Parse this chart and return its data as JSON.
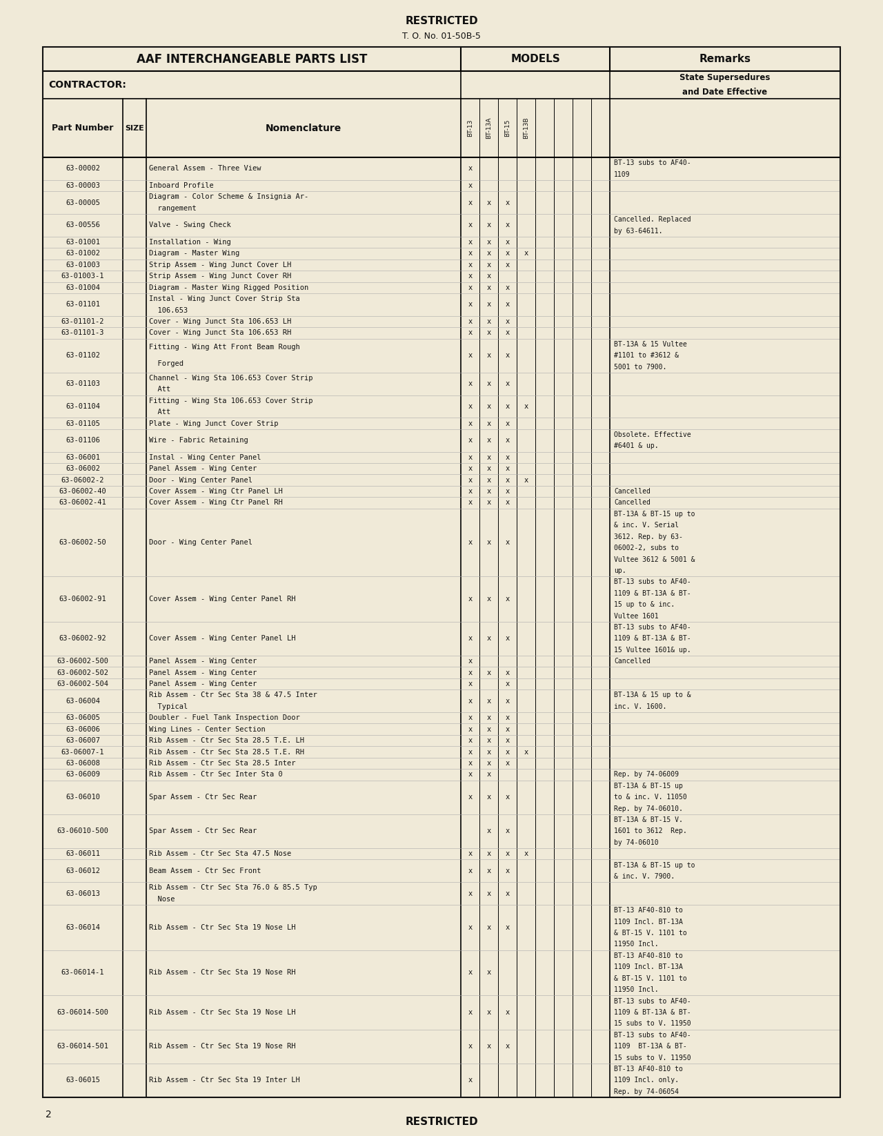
{
  "bg_color": "#f0ead8",
  "page_title_top": "RESTRICTED",
  "page_subtitle": "T. O. No. 01-50B-5",
  "header_left": "AAF INTERCHANGEABLE PARTS LIST",
  "header_models": "MODELS",
  "header_remarks": "Remarks",
  "contractor_label": "CONTRACTOR:",
  "state_supersedures": "State Supersedures\nand Date Effective",
  "model_labels_rotated": [
    "BT-13",
    "BT-13A",
    "BT-15",
    "BT-13B",
    "",
    "",
    "",
    ""
  ],
  "rows": [
    {
      "part": "63-00002",
      "nom": "General Assem - Three View",
      "marks": [
        1,
        0,
        0,
        0,
        0,
        0,
        0,
        0
      ],
      "remarks": "BT-13 subs to AF40-\n1109"
    },
    {
      "part": "63-00003",
      "nom": "Inboard Profile",
      "marks": [
        1,
        0,
        0,
        0,
        0,
        0,
        0,
        0
      ],
      "remarks": ""
    },
    {
      "part": "63-00005",
      "nom": "Diagram - Color Scheme & Insignia Ar-\n  rangement",
      "marks": [
        1,
        1,
        1,
        0,
        0,
        0,
        0,
        0
      ],
      "remarks": ""
    },
    {
      "part": "63-00556",
      "nom": "Valve - Swing Check",
      "marks": [
        1,
        1,
        1,
        0,
        0,
        0,
        0,
        0
      ],
      "remarks": "Cancelled. Replaced\nby 63-64611."
    },
    {
      "part": "63-01001",
      "nom": "Installation - Wing",
      "marks": [
        1,
        1,
        1,
        0,
        0,
        0,
        0,
        0
      ],
      "remarks": ""
    },
    {
      "part": "63-01002",
      "nom": "Diagram - Master Wing",
      "marks": [
        1,
        1,
        1,
        1,
        0,
        0,
        0,
        0
      ],
      "remarks": ""
    },
    {
      "part": "63-01003",
      "nom": "Strip Assem - Wing Junct Cover LH",
      "marks": [
        1,
        1,
        1,
        0,
        0,
        0,
        0,
        0
      ],
      "remarks": ""
    },
    {
      "part": "63-01003-1",
      "nom": "Strip Assem - Wing Junct Cover RH",
      "marks": [
        1,
        1,
        0,
        0,
        0,
        0,
        0,
        0
      ],
      "remarks": ""
    },
    {
      "part": "63-01004",
      "nom": "Diagram - Master Wing Rigged Position",
      "marks": [
        1,
        1,
        1,
        0,
        0,
        0,
        0,
        0
      ],
      "remarks": ""
    },
    {
      "part": "63-01101",
      "nom": "Instal - Wing Junct Cover Strip Sta\n  106.653",
      "marks": [
        1,
        1,
        1,
        0,
        0,
        0,
        0,
        0
      ],
      "remarks": ""
    },
    {
      "part": "63-01101-2",
      "nom": "Cover - Wing Junct Sta 106.653 LH",
      "marks": [
        1,
        1,
        1,
        0,
        0,
        0,
        0,
        0
      ],
      "remarks": ""
    },
    {
      "part": "63-01101-3",
      "nom": "Cover - Wing Junct Sta 106.653 RH",
      "marks": [
        1,
        1,
        1,
        0,
        0,
        0,
        0,
        0
      ],
      "remarks": ""
    },
    {
      "part": "63-01102",
      "nom": "Fitting - Wing Att Front Beam Rough\n  Forged",
      "marks": [
        1,
        1,
        1,
        0,
        0,
        0,
        0,
        0
      ],
      "remarks": "BT-13A & 15 Vultee\n#1101 to #3612 &\n5001 to 7900."
    },
    {
      "part": "63-01103",
      "nom": "Channel - Wing Sta 106.653 Cover Strip\n  Att",
      "marks": [
        1,
        1,
        1,
        0,
        0,
        0,
        0,
        0
      ],
      "remarks": ""
    },
    {
      "part": "63-01104",
      "nom": "Fitting - Wing Sta 106.653 Cover Strip\n  Att",
      "marks": [
        1,
        1,
        1,
        1,
        0,
        0,
        0,
        0
      ],
      "remarks": ""
    },
    {
      "part": "63-01105",
      "nom": "Plate - Wing Junct Cover Strip",
      "marks": [
        1,
        1,
        1,
        0,
        0,
        0,
        0,
        0
      ],
      "remarks": ""
    },
    {
      "part": "63-01106",
      "nom": "Wire - Fabric Retaining",
      "marks": [
        1,
        1,
        1,
        0,
        0,
        0,
        0,
        0
      ],
      "remarks": "Obsolete. Effective\n#6401 & up."
    },
    {
      "part": "63-06001",
      "nom": "Instal - Wing Center Panel",
      "marks": [
        1,
        1,
        1,
        0,
        0,
        0,
        0,
        0
      ],
      "remarks": ""
    },
    {
      "part": "63-06002",
      "nom": "Panel Assem - Wing Center",
      "marks": [
        1,
        1,
        1,
        0,
        0,
        0,
        0,
        0
      ],
      "remarks": ""
    },
    {
      "part": "63-06002-2",
      "nom": "Door - Wing Center Panel",
      "marks": [
        1,
        1,
        1,
        1,
        0,
        0,
        0,
        0
      ],
      "remarks": ""
    },
    {
      "part": "63-06002-40",
      "nom": "Cover Assem - Wing Ctr Panel LH",
      "marks": [
        1,
        1,
        1,
        0,
        0,
        0,
        0,
        0
      ],
      "remarks": "Cancelled"
    },
    {
      "part": "63-06002-41",
      "nom": "Cover Assem - Wing Ctr Panel RH",
      "marks": [
        1,
        1,
        1,
        0,
        0,
        0,
        0,
        0
      ],
      "remarks": "Cancelled"
    },
    {
      "part": "63-06002-50",
      "nom": "Door - Wing Center Panel",
      "marks": [
        1,
        1,
        1,
        0,
        0,
        0,
        0,
        0
      ],
      "remarks": "BT-13A & BT-15 up to\n& inc. V. Serial\n3612. Rep. by 63-\n06002-2, subs to\nVultee 3612 & 5001 &\nup."
    },
    {
      "part": "63-06002-91",
      "nom": "Cover Assem - Wing Center Panel RH",
      "marks": [
        1,
        1,
        1,
        0,
        0,
        0,
        0,
        0
      ],
      "remarks": "BT-13 subs to AF40-\n1109 & BT-13A & BT-\n15 up to & inc.\nVultee 1601"
    },
    {
      "part": "63-06002-92",
      "nom": "Cover Assem - Wing Center Panel LH",
      "marks": [
        1,
        1,
        1,
        0,
        0,
        0,
        0,
        0
      ],
      "remarks": "BT-13 subs to AF40-\n1109 & BT-13A & BT-\n15 Vultee 1601& up."
    },
    {
      "part": "63-06002-500",
      "nom": "Panel Assem - Wing Center",
      "marks": [
        1,
        0,
        0,
        0,
        0,
        0,
        0,
        0
      ],
      "remarks": "Cancelled"
    },
    {
      "part": "63-06002-502",
      "nom": "Panel Assem - Wing Center",
      "marks": [
        1,
        1,
        1,
        0,
        0,
        0,
        0,
        0
      ],
      "remarks": ""
    },
    {
      "part": "63-06002-504",
      "nom": "Panel Assem - Wing Center",
      "marks": [
        1,
        0,
        1,
        0,
        0,
        0,
        0,
        0
      ],
      "remarks": ""
    },
    {
      "part": "63-06004",
      "nom": "Rib Assem - Ctr Sec Sta 38 & 47.5 Inter\n  Typical",
      "marks": [
        1,
        1,
        1,
        0,
        0,
        0,
        0,
        0
      ],
      "remarks": "BT-13A & 15 up to &\ninc. V. 1600."
    },
    {
      "part": "63-06005",
      "nom": "Doubler - Fuel Tank Inspection Door",
      "marks": [
        1,
        1,
        1,
        0,
        0,
        0,
        0,
        0
      ],
      "remarks": ""
    },
    {
      "part": "63-06006",
      "nom": "Wing Lines - Center Section",
      "marks": [
        1,
        1,
        1,
        0,
        0,
        0,
        0,
        0
      ],
      "remarks": ""
    },
    {
      "part": "63-06007",
      "nom": "Rib Assem - Ctr Sec Sta 28.5 T.E. LH",
      "marks": [
        1,
        1,
        1,
        0,
        0,
        0,
        0,
        0
      ],
      "remarks": ""
    },
    {
      "part": "63-06007-1",
      "nom": "Rib Assem - Ctr Sec Sta 28.5 T.E. RH",
      "marks": [
        1,
        1,
        1,
        1,
        0,
        0,
        0,
        0
      ],
      "remarks": ""
    },
    {
      "part": "63-06008",
      "nom": "Rib Assem - Ctr Sec Sta 28.5 Inter",
      "marks": [
        1,
        1,
        1,
        0,
        0,
        0,
        0,
        0
      ],
      "remarks": ""
    },
    {
      "part": "63-06009",
      "nom": "Rib Assem - Ctr Sec Inter Sta 0",
      "marks": [
        1,
        1,
        0,
        0,
        0,
        0,
        0,
        0
      ],
      "remarks": "Rep. by 74-06009"
    },
    {
      "part": "63-06010",
      "nom": "Spar Assem - Ctr Sec Rear",
      "marks": [
        1,
        1,
        1,
        0,
        0,
        0,
        0,
        0
      ],
      "remarks": "BT-13A & BT-15 up\nto & inc. V. 11050\nRep. by 74-06010."
    },
    {
      "part": "63-06010-500",
      "nom": "Spar Assem - Ctr Sec Rear",
      "marks": [
        0,
        1,
        1,
        0,
        0,
        0,
        0,
        0
      ],
      "remarks": "BT-13A & BT-15 V.\n1601 to 3612  Rep.\nby 74-06010"
    },
    {
      "part": "63-06011",
      "nom": "Rib Assem - Ctr Sec Sta 47.5 Nose",
      "marks": [
        1,
        1,
        1,
        1,
        0,
        0,
        0,
        0
      ],
      "remarks": ""
    },
    {
      "part": "63-06012",
      "nom": "Beam Assem - Ctr Sec Front",
      "marks": [
        1,
        1,
        1,
        0,
        0,
        0,
        0,
        0
      ],
      "remarks": "BT-13A & BT-15 up to\n& inc. V. 7900."
    },
    {
      "part": "63-06013",
      "nom": "Rib Assem - Ctr Sec Sta 76.0 & 85.5 Typ\n  Nose",
      "marks": [
        1,
        1,
        1,
        0,
        0,
        0,
        0,
        0
      ],
      "remarks": ""
    },
    {
      "part": "63-06014",
      "nom": "Rib Assem - Ctr Sec Sta 19 Nose LH",
      "marks": [
        1,
        1,
        1,
        0,
        0,
        0,
        0,
        0
      ],
      "remarks": "BT-13 AF40-810 to\n1109 Incl. BT-13A\n& BT-15 V. 1101 to\n11950 Incl."
    },
    {
      "part": "63-06014-1",
      "nom": "Rib Assem - Ctr Sec Sta 19 Nose RH",
      "marks": [
        1,
        1,
        0,
        0,
        0,
        0,
        0,
        0
      ],
      "remarks": "BT-13 AF40-810 to\n1109 Incl. BT-13A\n& BT-15 V. 1101 to\n11950 Incl."
    },
    {
      "part": "63-06014-500",
      "nom": "Rib Assem - Ctr Sec Sta 19 Nose LH",
      "marks": [
        1,
        1,
        1,
        0,
        0,
        0,
        0,
        0
      ],
      "remarks": "BT-13 subs to AF40-\n1109 & BT-13A & BT-\n15 subs to V. 11950"
    },
    {
      "part": "63-06014-501",
      "nom": "Rib Assem - Ctr Sec Sta 19 Nose RH",
      "marks": [
        1,
        1,
        1,
        0,
        0,
        0,
        0,
        0
      ],
      "remarks": "BT-13 subs to AF40-\n1109  BT-13A & BT-\n15 subs to V. 11950"
    },
    {
      "part": "63-06015",
      "nom": "Rib Assem - Ctr Sec Sta 19 Inter LH",
      "marks": [
        1,
        0,
        0,
        0,
        0,
        0,
        0,
        0
      ],
      "remarks": "BT-13 AF40-810 to\n1109 Incl. only.\nRep. by 74-06054"
    }
  ],
  "page_num": "2",
  "page_bottom": "RESTRICTED"
}
